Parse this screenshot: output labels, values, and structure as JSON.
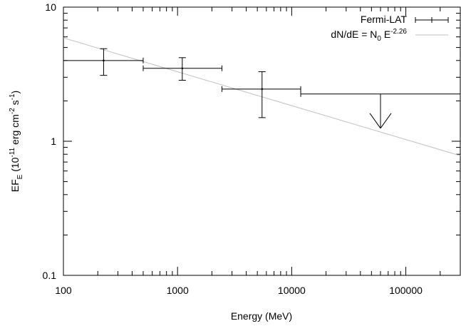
{
  "chart_data": {
    "type": "scatter",
    "title": "",
    "xlabel": "Energy (MeV)",
    "ylabel": "EF_E (10^-11 erg cm^-2 s^-1)",
    "ylabel_parts": {
      "main": "EF",
      "sub": "E",
      "open": " (10",
      "exp1": "-11",
      "mid": " erg cm",
      "exp2": "-2",
      "mid2": " s",
      "exp3": "-1",
      "close": ")"
    },
    "xscale": "log",
    "yscale": "log",
    "xlim": [
      100,
      300000
    ],
    "ylim": [
      0.1,
      10
    ],
    "x_ticks": [
      100,
      1000,
      10000,
      100000
    ],
    "x_tick_labels": [
      "100",
      "1000",
      "10000",
      "100000"
    ],
    "y_ticks": [
      0.1,
      1,
      10
    ],
    "y_tick_labels": [
      "0.1",
      "1",
      "10"
    ],
    "grid": false,
    "legend_position": "top-right",
    "series": [
      {
        "name": "Fermi-LAT",
        "color": "#000000",
        "points": [
          {
            "x": 225,
            "y": 4.0,
            "xlow": 100,
            "xhigh": 500,
            "ylow": 3.1,
            "yhigh": 4.9
          },
          {
            "x": 1100,
            "y": 3.5,
            "xlow": 500,
            "xhigh": 2450,
            "ylow": 2.85,
            "yhigh": 4.2
          },
          {
            "x": 5500,
            "y": 2.45,
            "xlow": 2450,
            "xhigh": 12000,
            "ylow": 1.5,
            "yhigh": 3.3
          }
        ],
        "upper_limits": [
          {
            "x": 60000,
            "y": 2.25,
            "xlow": 12000,
            "xhigh": 300000,
            "arrow_to": 1.25
          }
        ]
      },
      {
        "name": "dN/dE = N0 E^-2.26",
        "legend_parts": {
          "a": "dN/dE = N",
          "sub": "0",
          "b": " E",
          "sup": "-2.26"
        },
        "color": "#c0c0c0",
        "type": "line",
        "x": [
          100,
          300000
        ],
        "y": [
          5.9,
          0.78
        ]
      }
    ],
    "legend_entries": [
      "Fermi-LAT",
      "dN/dE = N0 E^-2.26"
    ]
  }
}
